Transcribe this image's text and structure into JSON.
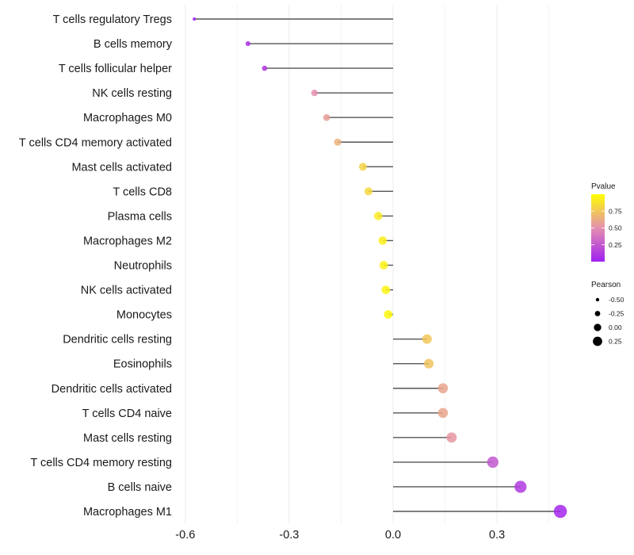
{
  "chart_data": {
    "type": "lollipop",
    "title": "",
    "xlabel": "",
    "ylabel": "",
    "xlim": [
      -0.62,
      0.5
    ],
    "x_ticks": [
      -0.6,
      -0.3,
      0.0,
      0.3
    ],
    "x_tick_labels": [
      "-0.6",
      "-0.3",
      "0.0",
      "0.3"
    ],
    "grid": true,
    "categories": [
      "T cells regulatory  Tregs",
      "B cells memory",
      "T cells follicular helper",
      "NK cells resting",
      "Macrophages M0",
      "T cells CD4 memory activated",
      "Mast cells activated",
      "T cells CD8",
      "Plasma cells",
      "Macrophages M2",
      "Neutrophils",
      "NK cells activated",
      "Monocytes",
      "Dendritic cells resting",
      "Eosinophils",
      "Dendritic cells activated",
      "T cells CD4 naive",
      "Mast cells resting",
      "T cells CD4 memory resting",
      "B cells naive",
      "Macrophages M1"
    ],
    "series": [
      {
        "name": "Pearson",
        "values": [
          -0.574,
          -0.419,
          -0.371,
          -0.227,
          -0.192,
          -0.16,
          -0.087,
          -0.071,
          -0.043,
          -0.03,
          -0.027,
          -0.021,
          -0.014,
          0.098,
          0.103,
          0.144,
          0.144,
          0.169,
          0.288,
          0.368,
          0.483
        ]
      },
      {
        "name": "Pvalue",
        "values": [
          0.01,
          0.07,
          0.1,
          0.5,
          0.57,
          0.65,
          0.8,
          0.83,
          0.9,
          0.93,
          0.94,
          0.95,
          0.97,
          0.75,
          0.73,
          0.6,
          0.6,
          0.54,
          0.25,
          0.12,
          0.03
        ]
      }
    ],
    "legend": {
      "placement": "right",
      "color": {
        "title": "Pvalue",
        "ticks": [
          0.25,
          0.5,
          0.75
        ],
        "tick_labels": [
          "0.25",
          "0.50",
          "0.75"
        ],
        "range": [
          0.0,
          1.0
        ],
        "low_color": "#a020f0",
        "mid_color": "#e48fb0",
        "high_color": "#ffff00"
      },
      "size": {
        "title": "Pearson",
        "values": [
          -0.5,
          -0.25,
          0.0,
          0.25
        ],
        "labels": [
          "-0.50",
          "-0.25",
          "0.00",
          "0.25"
        ]
      }
    },
    "segment_color": "#555555"
  }
}
